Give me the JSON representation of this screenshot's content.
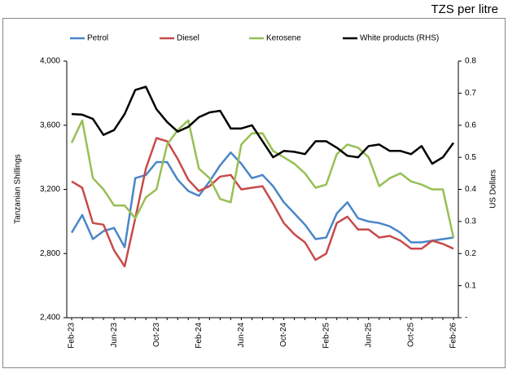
{
  "chart_data": {
    "type": "line",
    "unit_label": "TZS per litre",
    "y_label": "Tanzanian Shillings",
    "y2_label": "US Dollars",
    "categories": [
      "Feb-23",
      null,
      null,
      null,
      "Jun-23",
      null,
      null,
      null,
      "Oct-23",
      null,
      null,
      null,
      "Feb-24",
      null,
      null,
      null,
      "Jun-24",
      null,
      null,
      null,
      "Oct-24",
      null,
      null,
      null,
      "Feb-25",
      null,
      null,
      null,
      "Jun-25",
      null,
      null,
      null,
      "Oct-25",
      null,
      null,
      null,
      "Feb-26"
    ],
    "series": [
      {
        "name": "Petrol",
        "color": "#4a86c8",
        "values": [
          2930,
          3040,
          2890,
          2940,
          2960,
          2840,
          3270,
          3290,
          3370,
          3370,
          3260,
          3190,
          3160,
          3250,
          3350,
          3430,
          3360,
          3270,
          3290,
          3220,
          3120,
          3050,
          2980,
          2890,
          2900,
          3050,
          3120,
          3020,
          3000,
          2990,
          2970,
          2930,
          2870,
          2870,
          2880,
          2890,
          2900
        ]
      },
      {
        "name": "Diesel",
        "color": "#c84a4a",
        "values": [
          3250,
          3210,
          2990,
          2980,
          2820,
          2720,
          3020,
          3330,
          3520,
          3500,
          3390,
          3260,
          3190,
          3220,
          3280,
          3290,
          3200,
          3210,
          3220,
          3110,
          2990,
          2920,
          2870,
          2760,
          2800,
          2990,
          3030,
          2950,
          2950,
          2900,
          2910,
          2880,
          2830,
          2830,
          2880,
          2860,
          2830
        ]
      },
      {
        "name": "Kerosene",
        "color": "#98bf55",
        "values": [
          3490,
          3630,
          3270,
          3200,
          3100,
          3100,
          3020,
          3150,
          3200,
          3480,
          3570,
          3630,
          3330,
          3270,
          3140,
          3120,
          3480,
          3550,
          3550,
          3440,
          3400,
          3360,
          3300,
          3210,
          3230,
          3420,
          3480,
          3460,
          3400,
          3220,
          3270,
          3300,
          3250,
          3230,
          3200,
          3200,
          2900
        ]
      },
      {
        "name": "White products (RHS)",
        "color": "#000000",
        "axis": "y2",
        "values": [
          0.635,
          0.633,
          0.62,
          0.57,
          0.585,
          0.635,
          0.71,
          0.72,
          0.65,
          0.61,
          0.58,
          0.595,
          0.625,
          0.64,
          0.645,
          0.59,
          0.59,
          0.6,
          0.55,
          0.5,
          0.52,
          0.517,
          0.51,
          0.55,
          0.55,
          0.53,
          0.505,
          0.5,
          0.535,
          0.54,
          0.52,
          0.52,
          0.51,
          0.535,
          0.48,
          0.5,
          0.545
        ]
      }
    ],
    "ylim": [
      2400,
      4000
    ],
    "yticks": [
      {
        "value": 2400,
        "label": "2,400"
      },
      {
        "value": 2800,
        "label": "2,800"
      },
      {
        "value": 3200,
        "label": "3,200"
      },
      {
        "value": 3600,
        "label": "3,600"
      },
      {
        "value": 4000,
        "label": "4,000"
      }
    ],
    "y2lim": [
      0,
      0.8
    ],
    "y2ticks": [
      {
        "value": 0,
        "label": "-"
      },
      0.1,
      0.2,
      0.3,
      0.4,
      0.5,
      0.6,
      0.7,
      0.8
    ],
    "grid": false
  }
}
